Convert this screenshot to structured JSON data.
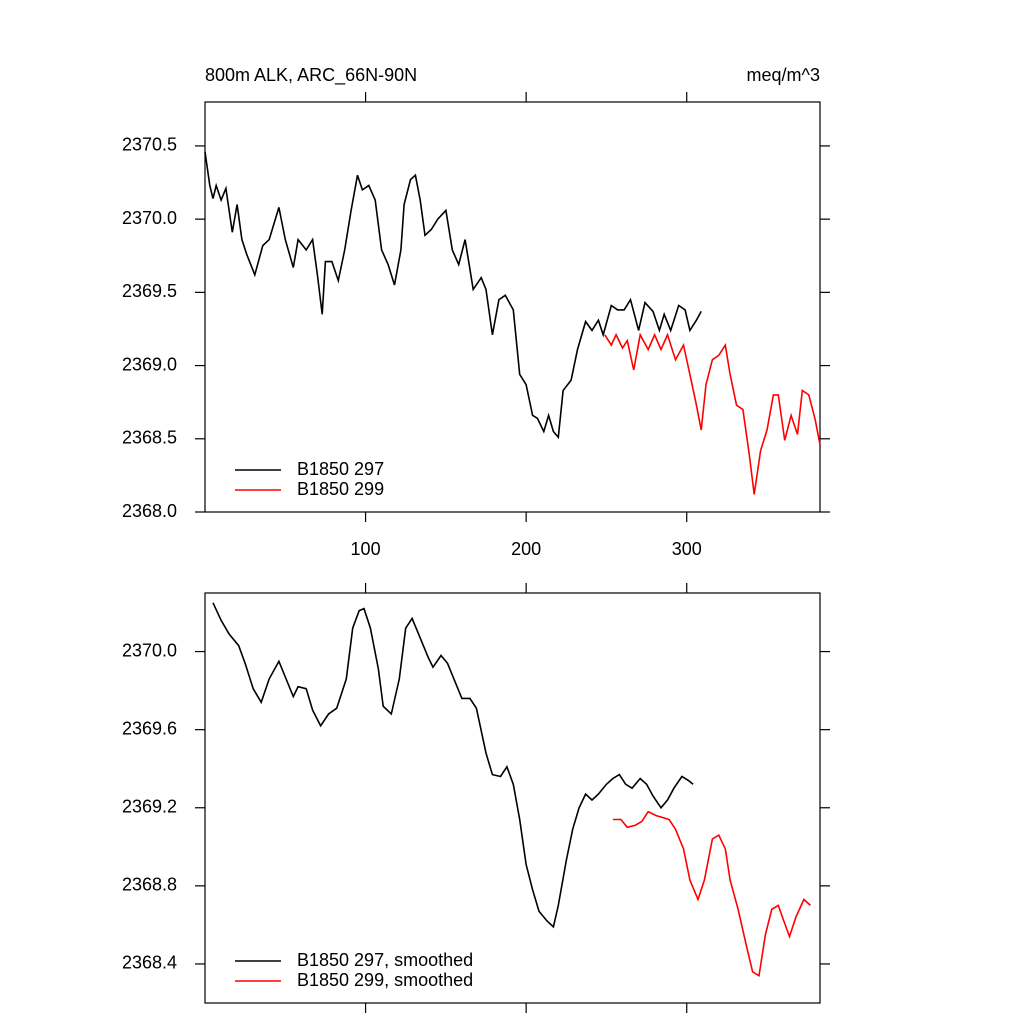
{
  "chart_data": [
    {
      "type": "line",
      "title": "800m ALK, ARC_66N-90N",
      "right_title": "meq/m^3",
      "xlim": [
        0,
        383
      ],
      "xticks": [
        100,
        200,
        300
      ],
      "ylim": [
        2368.0,
        2370.8
      ],
      "yticks": [
        {
          "value": 2368.0,
          "label": "2368.0"
        },
        2368.5,
        {
          "value": 2369.0,
          "label": "2369.0"
        },
        2369.5,
        {
          "value": 2370.0,
          "label": "2370.0"
        },
        2370.5
      ],
      "legend": "lower left",
      "series": [
        {
          "name": "B1850 297",
          "color": "#000000",
          "x": [
            0,
            3,
            5,
            7,
            10,
            13,
            17,
            20,
            23,
            26,
            31,
            36,
            40,
            46,
            50,
            55,
            58,
            63,
            67,
            70,
            73,
            75,
            79,
            83,
            87,
            91,
            95,
            98,
            102,
            106,
            110,
            114,
            118,
            122,
            124,
            128,
            131,
            134,
            137,
            141,
            145,
            150,
            154,
            158,
            162,
            167,
            172,
            175,
            179,
            183,
            187,
            192,
            196,
            200,
            204,
            207,
            211,
            214,
            217,
            220,
            223,
            228,
            232,
            237,
            241,
            245,
            248,
            253,
            257,
            261,
            265,
            270,
            274,
            279,
            283,
            286,
            290,
            295,
            299,
            302,
            306,
            309
          ],
          "values": [
            2370.46,
            2370.23,
            2370.14,
            2370.23,
            2370.13,
            2370.21,
            2369.91,
            2370.1,
            2369.86,
            2369.76,
            2369.62,
            2369.82,
            2369.86,
            2370.08,
            2369.86,
            2369.67,
            2369.86,
            2369.79,
            2369.86,
            2369.62,
            2369.35,
            2369.71,
            2369.71,
            2369.58,
            2369.79,
            2370.06,
            2370.3,
            2370.2,
            2370.23,
            2370.13,
            2369.79,
            2369.69,
            2369.55,
            2369.79,
            2370.1,
            2370.27,
            2370.3,
            2370.13,
            2369.89,
            2369.93,
            2370.0,
            2370.06,
            2369.79,
            2369.69,
            2369.86,
            2369.52,
            2369.6,
            2369.52,
            2369.21,
            2369.45,
            2369.48,
            2369.38,
            2368.94,
            2368.87,
            2368.66,
            2368.64,
            2368.55,
            2368.66,
            2368.55,
            2368.51,
            2368.83,
            2368.9,
            2369.11,
            2369.3,
            2369.24,
            2369.31,
            2369.21,
            2369.41,
            2369.38,
            2369.38,
            2369.45,
            2369.24,
            2369.43,
            2369.37,
            2369.24,
            2369.35,
            2369.24,
            2369.41,
            2369.38,
            2369.24,
            2369.31,
            2369.37
          ]
        },
        {
          "name": "B1850 299",
          "color": "#ff0000",
          "x": [
            249,
            253,
            256,
            260,
            263,
            267,
            271,
            276,
            280,
            284,
            288,
            293,
            298,
            302,
            306,
            309,
            312,
            316,
            320,
            324,
            327,
            331,
            335,
            339,
            342,
            346,
            350,
            354,
            357,
            361,
            365,
            369,
            372,
            376,
            380,
            383
          ],
          "values": [
            2369.21,
            2369.14,
            2369.21,
            2369.12,
            2369.17,
            2368.97,
            2369.21,
            2369.11,
            2369.21,
            2369.11,
            2369.21,
            2369.04,
            2369.14,
            2368.94,
            2368.73,
            2368.56,
            2368.87,
            2369.04,
            2369.07,
            2369.14,
            2368.94,
            2368.73,
            2368.7,
            2368.39,
            2368.12,
            2368.42,
            2368.56,
            2368.8,
            2368.8,
            2368.49,
            2368.66,
            2368.53,
            2368.83,
            2368.8,
            2368.63,
            2368.46
          ]
        }
      ]
    },
    {
      "type": "line",
      "xlim": [
        0,
        383
      ],
      "ylim": [
        2368.2,
        2370.3
      ],
      "yticks": [
        2368.4,
        2368.8,
        2369.2,
        2369.6,
        {
          "value": 2370.0,
          "label": "2370.0"
        }
      ],
      "legend": "lower left",
      "series": [
        {
          "name": "B1850 297, smoothed",
          "color": "#000000",
          "x": [
            5,
            10,
            15,
            21,
            25,
            30,
            35,
            40,
            46,
            50,
            55,
            58,
            63,
            67,
            72,
            77,
            82,
            88,
            92,
            96,
            99,
            103,
            108,
            111,
            116,
            121,
            125,
            129,
            134,
            139,
            142,
            147,
            151,
            156,
            160,
            165,
            169,
            175,
            179,
            184,
            188,
            192,
            196,
            200,
            204,
            208,
            213,
            217,
            220,
            225,
            229,
            233,
            237,
            241,
            245,
            250,
            254,
            258,
            262,
            266,
            271,
            275,
            279,
            284,
            288,
            292,
            297,
            301,
            304
          ],
          "values": [
            2370.25,
            2370.16,
            2370.09,
            2370.03,
            2369.94,
            2369.81,
            2369.74,
            2369.86,
            2369.95,
            2369.87,
            2369.77,
            2369.82,
            2369.81,
            2369.7,
            2369.62,
            2369.68,
            2369.71,
            2369.86,
            2370.12,
            2370.21,
            2370.22,
            2370.12,
            2369.91,
            2369.72,
            2369.68,
            2369.86,
            2370.12,
            2370.17,
            2370.07,
            2369.97,
            2369.92,
            2369.98,
            2369.94,
            2369.84,
            2369.76,
            2369.76,
            2369.71,
            2369.48,
            2369.37,
            2369.36,
            2369.41,
            2369.32,
            2369.14,
            2368.91,
            2368.78,
            2368.67,
            2368.62,
            2368.59,
            2368.7,
            2368.93,
            2369.09,
            2369.2,
            2369.27,
            2369.24,
            2369.27,
            2369.32,
            2369.35,
            2369.37,
            2369.32,
            2369.3,
            2369.35,
            2369.32,
            2369.26,
            2369.2,
            2369.24,
            2369.3,
            2369.36,
            2369.34,
            2369.32
          ]
        },
        {
          "name": "B1850 299, smoothed",
          "color": "#ff0000",
          "x": [
            254,
            259,
            263,
            268,
            272,
            276,
            281,
            285,
            289,
            293,
            298,
            302,
            307,
            311,
            316,
            320,
            324,
            327,
            332,
            337,
            341,
            345,
            349,
            353,
            357,
            360,
            364,
            368,
            373,
            377
          ],
          "values": [
            2369.14,
            2369.14,
            2369.1,
            2369.11,
            2369.13,
            2369.18,
            2369.16,
            2369.15,
            2369.14,
            2369.09,
            2368.99,
            2368.83,
            2368.73,
            2368.83,
            2369.04,
            2369.06,
            2368.99,
            2368.83,
            2368.68,
            2368.5,
            2368.36,
            2368.34,
            2368.55,
            2368.68,
            2368.7,
            2368.63,
            2368.54,
            2368.64,
            2368.73,
            2368.7
          ]
        }
      ]
    }
  ]
}
